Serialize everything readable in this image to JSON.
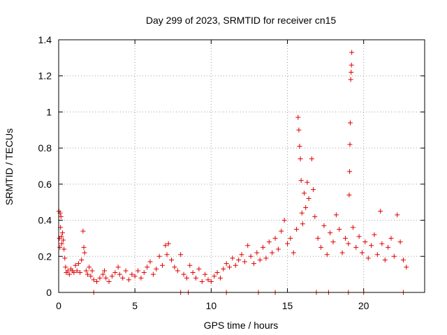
{
  "chart_data": {
    "type": "scatter",
    "title": "Day 299 of 2023, SRMTID for receiver cn15",
    "xlabel": "GPS time / hours",
    "ylabel": "SRMTID / TECUs",
    "xlim": [
      0,
      24
    ],
    "ylim": [
      0,
      1.4
    ],
    "xticks": [
      0,
      5,
      10,
      15,
      20
    ],
    "xtick_labels": [
      "0",
      "5",
      "10",
      "15",
      "20"
    ],
    "yticks": [
      0,
      0.2,
      0.4,
      0.6,
      0.8,
      1,
      1.2,
      1.4
    ],
    "ytick_labels": [
      "0",
      "0.2",
      "0.4",
      "0.6",
      "0.8",
      "1",
      "1.2",
      "1.4"
    ],
    "grid": true,
    "marker": "plus",
    "color": "#e00000",
    "series": [
      {
        "name": "SRMTID",
        "points": [
          [
            0.02,
            0.45
          ],
          [
            0.05,
            0.3
          ],
          [
            0.08,
            0.25
          ],
          [
            0.1,
            0.44
          ],
          [
            0.12,
            0.36
          ],
          [
            0.15,
            0.42
          ],
          [
            0.18,
            0.31
          ],
          [
            0.2,
            0.27
          ],
          [
            0.25,
            0.33
          ],
          [
            0.3,
            0.29
          ],
          [
            0.35,
            0.24
          ],
          [
            0.4,
            0.19
          ],
          [
            0.45,
            0.14
          ],
          [
            0.5,
            0.11
          ],
          [
            0.6,
            0.12
          ],
          [
            0.7,
            0.1
          ],
          [
            0.8,
            0.13
          ],
          [
            0.9,
            0.12
          ],
          [
            1.0,
            0.11
          ],
          [
            1.1,
            0.15
          ],
          [
            1.2,
            0.12
          ],
          [
            1.3,
            0.16
          ],
          [
            1.4,
            0.11
          ],
          [
            1.5,
            0.18
          ],
          [
            1.6,
            0.34
          ],
          [
            1.65,
            0.25
          ],
          [
            1.7,
            0.22
          ],
          [
            1.8,
            0.12
          ],
          [
            1.9,
            0.1
          ],
          [
            2.0,
            0.14
          ],
          [
            2.1,
            0.09
          ],
          [
            2.2,
            0.12
          ],
          [
            2.3,
            0.07
          ],
          [
            2.5,
            0.06
          ],
          [
            2.7,
            0.08
          ],
          [
            2.9,
            0.1
          ],
          [
            3.0,
            0.12
          ],
          [
            3.1,
            0.08
          ],
          [
            3.3,
            0.06
          ],
          [
            3.5,
            0.09
          ],
          [
            3.7,
            0.11
          ],
          [
            3.9,
            0.14
          ],
          [
            4.0,
            0.1
          ],
          [
            4.2,
            0.08
          ],
          [
            4.4,
            0.12
          ],
          [
            4.6,
            0.07
          ],
          [
            4.8,
            0.1
          ],
          [
            5.0,
            0.09
          ],
          [
            5.2,
            0.12
          ],
          [
            5.4,
            0.08
          ],
          [
            5.6,
            0.11
          ],
          [
            5.8,
            0.14
          ],
          [
            6.0,
            0.17
          ],
          [
            6.2,
            0.1
          ],
          [
            6.4,
            0.13
          ],
          [
            6.6,
            0.2
          ],
          [
            6.8,
            0.15
          ],
          [
            7.0,
            0.26
          ],
          [
            7.1,
            0.21
          ],
          [
            7.2,
            0.27
          ],
          [
            7.4,
            0.18
          ],
          [
            7.6,
            0.14
          ],
          [
            7.8,
            0.12
          ],
          [
            8.0,
            0.21
          ],
          [
            8.2,
            0.1
          ],
          [
            8.4,
            0.08
          ],
          [
            8.6,
            0.15
          ],
          [
            8.8,
            0.11
          ],
          [
            9.0,
            0.08
          ],
          [
            9.2,
            0.13
          ],
          [
            9.4,
            0.06
          ],
          [
            9.6,
            0.1
          ],
          [
            9.8,
            0.07
          ],
          [
            10.0,
            0.06
          ],
          [
            10.2,
            0.09
          ],
          [
            10.4,
            0.11
          ],
          [
            10.6,
            0.08
          ],
          [
            10.8,
            0.13
          ],
          [
            11.0,
            0.16
          ],
          [
            11.2,
            0.14
          ],
          [
            11.4,
            0.19
          ],
          [
            11.6,
            0.15
          ],
          [
            11.8,
            0.18
          ],
          [
            12.0,
            0.21
          ],
          [
            12.2,
            0.17
          ],
          [
            12.4,
            0.26
          ],
          [
            12.6,
            0.2
          ],
          [
            12.8,
            0.16
          ],
          [
            13.0,
            0.22
          ],
          [
            13.2,
            0.18
          ],
          [
            13.4,
            0.25
          ],
          [
            13.6,
            0.19
          ],
          [
            13.8,
            0.28
          ],
          [
            14.0,
            0.22
          ],
          [
            14.2,
            0.3
          ],
          [
            14.4,
            0.24
          ],
          [
            14.6,
            0.34
          ],
          [
            14.8,
            0.4
          ],
          [
            15.0,
            0.27
          ],
          [
            15.2,
            0.3
          ],
          [
            15.4,
            0.22
          ],
          [
            15.6,
            0.35
          ],
          [
            15.7,
            0.97
          ],
          [
            15.75,
            0.9
          ],
          [
            15.8,
            0.81
          ],
          [
            15.85,
            0.74
          ],
          [
            15.9,
            0.62
          ],
          [
            15.95,
            0.44
          ],
          [
            16.0,
            0.38
          ],
          [
            16.1,
            0.55
          ],
          [
            16.2,
            0.47
          ],
          [
            16.3,
            0.61
          ],
          [
            16.4,
            0.52
          ],
          [
            16.6,
            0.74
          ],
          [
            16.7,
            0.57
          ],
          [
            16.8,
            0.42
          ],
          [
            17.0,
            0.3
          ],
          [
            17.2,
            0.25
          ],
          [
            17.4,
            0.37
          ],
          [
            17.6,
            0.21
          ],
          [
            17.8,
            0.33
          ],
          [
            18.0,
            0.28
          ],
          [
            18.2,
            0.43
          ],
          [
            18.4,
            0.35
          ],
          [
            18.6,
            0.22
          ],
          [
            18.8,
            0.3
          ],
          [
            19.0,
            0.27
          ],
          [
            19.05,
            0.54
          ],
          [
            19.08,
            0.67
          ],
          [
            19.1,
            0.82
          ],
          [
            19.12,
            0.94
          ],
          [
            19.15,
            1.18
          ],
          [
            19.18,
            1.22
          ],
          [
            19.2,
            1.26
          ],
          [
            19.22,
            1.33
          ],
          [
            19.3,
            0.36
          ],
          [
            19.5,
            0.25
          ],
          [
            19.7,
            0.31
          ],
          [
            19.9,
            0.22
          ],
          [
            20.1,
            0.28
          ],
          [
            20.3,
            0.19
          ],
          [
            20.5,
            0.26
          ],
          [
            20.7,
            0.32
          ],
          [
            20.9,
            0.21
          ],
          [
            21.1,
            0.45
          ],
          [
            21.2,
            0.27
          ],
          [
            21.4,
            0.18
          ],
          [
            21.6,
            0.25
          ],
          [
            21.8,
            0.3
          ],
          [
            22.0,
            0.2
          ],
          [
            22.2,
            0.43
          ],
          [
            22.4,
            0.28
          ],
          [
            22.6,
            0.18
          ],
          [
            22.8,
            0.14
          ]
        ]
      }
    ],
    "zero_points_x": [
      2.3,
      8.0,
      8.5,
      11.0,
      13.1,
      14.2,
      16.9,
      17.7,
      19.0,
      20.0,
      22.6
    ]
  }
}
